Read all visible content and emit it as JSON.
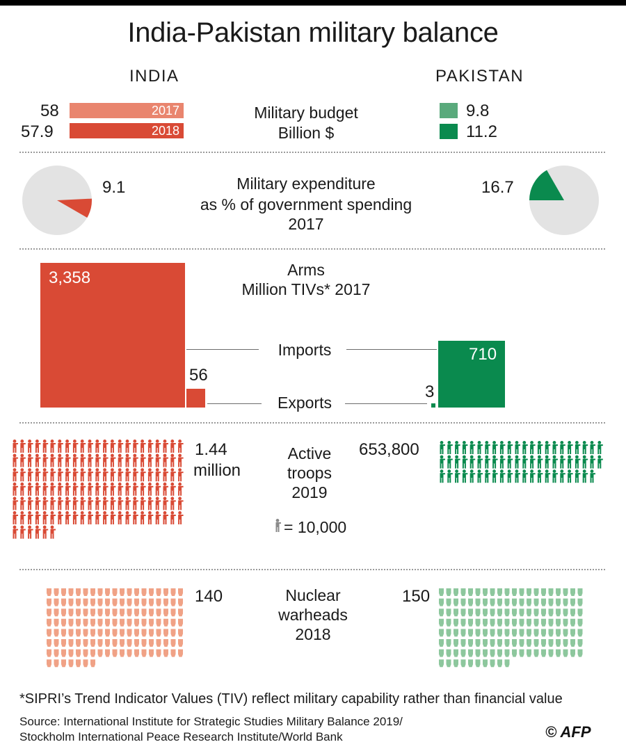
{
  "title": "India-Pakistan military balance",
  "countries": {
    "india": "INDIA",
    "pakistan": "PAKISTAN"
  },
  "colors": {
    "india_dark": "#d94a35",
    "india_light": "#e9856e",
    "india_pale": "#f0a286",
    "pakistan_dark": "#0a8a4e",
    "pakistan_light": "#5aaa7c",
    "pakistan_pale": "#8dc79d",
    "pie_bg": "#e3e3e3"
  },
  "chart_data": [
    {
      "type": "bar",
      "title": "Military budget",
      "subtitle": "Billion $",
      "series": [
        {
          "name": "INDIA",
          "years": [
            "2017",
            "2018"
          ],
          "values": [
            58,
            57.9
          ],
          "labels": [
            "58",
            "57.9"
          ]
        },
        {
          "name": "PAKISTAN",
          "years": [
            "2017",
            "2018"
          ],
          "values": [
            9.8,
            11.2
          ],
          "labels": [
            "9.8",
            "11.2"
          ]
        }
      ]
    },
    {
      "type": "pie",
      "title": "Military expenditure",
      "subtitle": "as % of government spending",
      "year": "2017",
      "series": [
        {
          "name": "INDIA",
          "value": 9.1,
          "label": "9.1"
        },
        {
          "name": "PAKISTAN",
          "value": 16.7,
          "label": "16.7"
        }
      ]
    },
    {
      "type": "bar",
      "title": "Arms",
      "subtitle": "Million TIVs* 2017",
      "categories": [
        "Imports",
        "Exports"
      ],
      "series": [
        {
          "name": "INDIA",
          "values": [
            3358,
            56
          ],
          "labels": [
            "3,358",
            "56"
          ]
        },
        {
          "name": "PAKISTAN",
          "values": [
            710,
            3
          ],
          "labels": [
            "710",
            "3"
          ]
        }
      ]
    },
    {
      "type": "pictogram",
      "title": "Active troops",
      "year": "2019",
      "unit_label": "= 10,000",
      "unit_value": 10000,
      "series": [
        {
          "name": "INDIA",
          "value": 1440000,
          "icons": 144,
          "label_line1": "1.44",
          "label_line2": "million"
        },
        {
          "name": "PAKISTAN",
          "value": 653800,
          "icons": 65,
          "label_line1": "653,800"
        }
      ]
    },
    {
      "type": "pictogram",
      "title": "Nuclear warheads",
      "year": "2018",
      "series": [
        {
          "name": "INDIA",
          "value": 140,
          "icons": 140,
          "label": "140"
        },
        {
          "name": "PAKISTAN",
          "value": 150,
          "icons": 150,
          "label": "150"
        }
      ]
    }
  ],
  "labels": {
    "budget_title": "Military budget",
    "budget_sub": "Billion $",
    "exp_title": "Military expenditure",
    "exp_sub": "as % of government spending",
    "exp_year": "2017",
    "arms_title": "Arms",
    "arms_sub": "Million TIVs* 2017",
    "imports": "Imports",
    "exports": "Exports",
    "troops_l1": "Active",
    "troops_l2": "troops",
    "troops_l3": "2019",
    "troops_unit": "= 10,000",
    "nuke_l1": "Nuclear",
    "nuke_l2": "warheads",
    "nuke_l3": "2018"
  },
  "footnote": "*SIPRI’s Trend Indicator Values (TIV) reflect military capability rather than financial value",
  "source_line1": "Source: International Institute for Strategic Studies Military Balance 2019/",
  "source_line2": "Stockholm International Peace Research Institute/World Bank",
  "credit": "© AFP"
}
